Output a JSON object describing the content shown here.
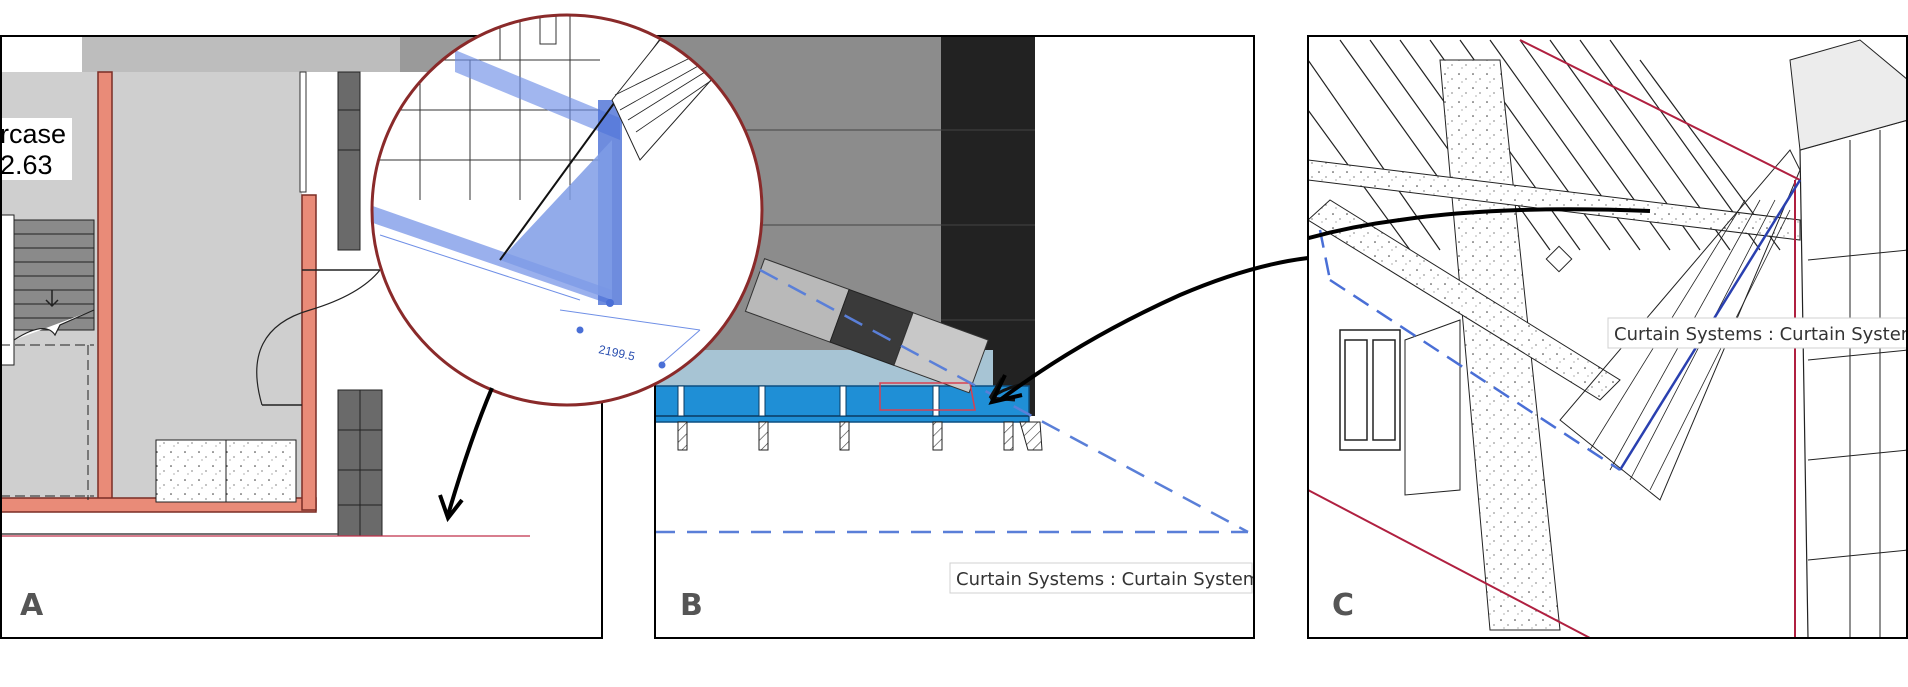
{
  "panel_a": {
    "label": "A",
    "room_name": "rcase",
    "room_area": "2.63"
  },
  "panel_b": {
    "label": "B",
    "dimension_value": "2199.5",
    "tooltip": "Curtain Systems : Curtain System :"
  },
  "panel_c": {
    "label": "C",
    "tooltip": "Curtain Systems : Curtain System :"
  },
  "colors": {
    "highlight_blue": "#1f8fd6",
    "selection_blue": "#4a6fd6",
    "wall_red": "#e08070",
    "callout_circle": "#8a2a2a",
    "ref_line": "#b02040"
  }
}
